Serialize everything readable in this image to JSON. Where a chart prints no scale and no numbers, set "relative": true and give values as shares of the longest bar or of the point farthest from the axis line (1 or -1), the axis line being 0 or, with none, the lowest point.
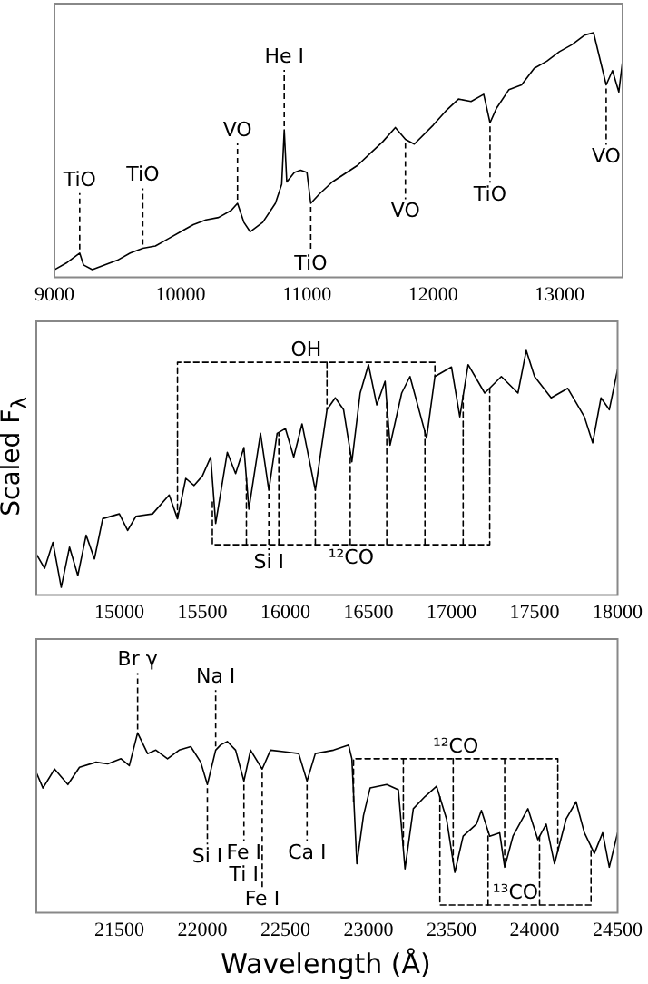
{
  "chart_data": [
    {
      "type": "line",
      "relative": true,
      "xlim": [
        9000,
        13500
      ],
      "xticks": [
        9000,
        10000,
        11000,
        12000,
        13000
      ],
      "series": [
        {
          "color": "#000000",
          "x": [
            9000,
            9100,
            9200,
            9230,
            9300,
            9400,
            9500,
            9600,
            9700,
            9800,
            9900,
            10000,
            10100,
            10200,
            10300,
            10400,
            10450,
            10500,
            10550,
            10650,
            10750,
            10800,
            10820,
            10840,
            10900,
            10950,
            11000,
            11030,
            11100,
            11200,
            11400,
            11500,
            11600,
            11700,
            11780,
            11850,
            12000,
            12100,
            12200,
            12300,
            12400,
            12450,
            12500,
            12600,
            12700,
            12800,
            12900,
            13000,
            13100,
            13200,
            13270,
            13320,
            13370,
            13420,
            13470,
            13500
          ],
          "values": [
            0.0,
            0.03,
            0.07,
            0.02,
            0.0,
            0.02,
            0.04,
            0.07,
            0.09,
            0.1,
            0.13,
            0.16,
            0.19,
            0.21,
            0.22,
            0.25,
            0.28,
            0.2,
            0.16,
            0.2,
            0.28,
            0.36,
            0.59,
            0.37,
            0.41,
            0.42,
            0.41,
            0.28,
            0.32,
            0.37,
            0.44,
            0.49,
            0.54,
            0.6,
            0.55,
            0.53,
            0.61,
            0.67,
            0.72,
            0.71,
            0.74,
            0.62,
            0.68,
            0.76,
            0.78,
            0.85,
            0.88,
            0.92,
            0.95,
            0.99,
            1.0,
            0.89,
            0.78,
            0.84,
            0.75,
            0.88
          ]
        }
      ],
      "annotations": [
        {
          "text": "TiO",
          "x": 9200,
          "y": 0.07
        },
        {
          "text": "TiO",
          "x": 9700,
          "y": 0.09
        },
        {
          "text": "VO",
          "x": 10450,
          "y": 0.28
        },
        {
          "text": "He I",
          "x": 10820,
          "y": 0.59
        },
        {
          "text": "TiO",
          "x": 11030,
          "y": 0.28
        },
        {
          "text": "VO",
          "x": 11780,
          "y": 0.55
        },
        {
          "text": "TiO",
          "x": 12450,
          "y": 0.62
        },
        {
          "text": "VO",
          "x": 13370,
          "y": 0.78
        }
      ]
    },
    {
      "type": "line",
      "relative": true,
      "xlim": [
        14500,
        18000
      ],
      "xticks": [
        15000,
        15500,
        16000,
        16500,
        17000,
        17500,
        18000
      ],
      "ylabel": "Scaled F$_{λ}$",
      "series": [
        {
          "color": "#000000",
          "x": [
            14500,
            14550,
            14600,
            14650,
            14700,
            14750,
            14800,
            14850,
            14900,
            15000,
            15050,
            15100,
            15200,
            15300,
            15350,
            15400,
            15450,
            15500,
            15550,
            15580,
            15650,
            15700,
            15750,
            15780,
            15850,
            15900,
            15950,
            16000,
            16050,
            16100,
            16180,
            16250,
            16300,
            16350,
            16400,
            16450,
            16500,
            16550,
            16600,
            16630,
            16700,
            16750,
            16850,
            16900,
            17000,
            17050,
            17100,
            17200,
            17300,
            17400,
            17450,
            17500,
            17600,
            17700,
            17800,
            17850,
            17900,
            17950,
            18000
          ],
          "values": [
            0.14,
            0.08,
            0.19,
            0.0,
            0.17,
            0.05,
            0.22,
            0.12,
            0.29,
            0.31,
            0.24,
            0.3,
            0.31,
            0.39,
            0.29,
            0.46,
            0.43,
            0.47,
            0.55,
            0.27,
            0.57,
            0.48,
            0.59,
            0.33,
            0.65,
            0.41,
            0.65,
            0.67,
            0.55,
            0.69,
            0.41,
            0.75,
            0.8,
            0.75,
            0.53,
            0.82,
            0.94,
            0.77,
            0.87,
            0.6,
            0.82,
            0.89,
            0.63,
            0.89,
            0.93,
            0.72,
            0.94,
            0.82,
            0.89,
            0.82,
            1.0,
            0.89,
            0.8,
            0.84,
            0.72,
            0.61,
            0.8,
            0.75,
            0.92
          ]
        },
        {
          "name": "OH",
          "color": "#000000",
          "line_style": "dashed",
          "x": [
            15350,
            15350,
            16900,
            16900
          ],
          "values": [
            0.29,
            0.95,
            0.95,
            0.89
          ]
        },
        {
          "color": "#000000",
          "line_style": "dashed",
          "x": [
            16250,
            16250
          ],
          "values": [
            0.95,
            0.75
          ]
        },
        {
          "name": "¹²CO",
          "color": "#000000",
          "line_style": "dashed",
          "x": [
            15560,
            15560,
            17230,
            17230
          ],
          "values": [
            0.36,
            0.18,
            0.18,
            0.84
          ]
        },
        {
          "color": "#000000",
          "line_style": "dashed",
          "x": [
            15765,
            15765
          ],
          "values": [
            0.18,
            0.46
          ]
        },
        {
          "color": "#000000",
          "line_style": "dashed",
          "x": [
            15960,
            15960
          ],
          "values": [
            0.18,
            0.65
          ]
        },
        {
          "color": "#000000",
          "line_style": "dashed",
          "x": [
            16180,
            16180
          ],
          "values": [
            0.18,
            0.41
          ]
        },
        {
          "color": "#000000",
          "line_style": "dashed",
          "x": [
            16390,
            16390
          ],
          "values": [
            0.18,
            0.57
          ]
        },
        {
          "color": "#000000",
          "line_style": "dashed",
          "x": [
            16610,
            16610
          ],
          "values": [
            0.18,
            0.78
          ]
        },
        {
          "color": "#000000",
          "line_style": "dashed",
          "x": [
            16840,
            16840
          ],
          "values": [
            0.18,
            0.66
          ]
        },
        {
          "color": "#000000",
          "line_style": "dashed",
          "x": [
            17070,
            17070
          ],
          "values": [
            0.18,
            0.81
          ]
        }
      ],
      "annotations": [
        {
          "text": "Si I",
          "x": 15900,
          "y": 0.41
        }
      ]
    },
    {
      "type": "line",
      "relative": true,
      "xlim": [
        21000,
        24500
      ],
      "xticks": [
        21500,
        22000,
        22500,
        23000,
        23500,
        24000,
        24500
      ],
      "xlabel": "Wavelength (Å)",
      "series": [
        {
          "color": "#000000",
          "x": [
            21000,
            21040,
            21110,
            21190,
            21260,
            21360,
            21430,
            21510,
            21560,
            21610,
            21670,
            21720,
            21790,
            21860,
            21930,
            21990,
            22030,
            22080,
            22110,
            22150,
            22200,
            22250,
            22290,
            22360,
            22410,
            22500,
            22580,
            22630,
            22680,
            22790,
            22880,
            22900,
            22930,
            22970,
            23010,
            23110,
            23180,
            23220,
            23270,
            23340,
            23410,
            23470,
            23520,
            23570,
            23650,
            23680,
            23730,
            23790,
            23820,
            23870,
            23960,
            24020,
            24070,
            24120,
            24190,
            24250,
            24300,
            24360,
            24410,
            24450,
            24500
          ],
          "values": [
            0.77,
            0.68,
            0.79,
            0.7,
            0.8,
            0.83,
            0.82,
            0.85,
            0.81,
            1.0,
            0.88,
            0.9,
            0.85,
            0.9,
            0.92,
            0.83,
            0.7,
            0.9,
            0.93,
            0.95,
            0.9,
            0.72,
            0.9,
            0.79,
            0.9,
            0.89,
            0.88,
            0.72,
            0.88,
            0.9,
            0.93,
            0.85,
            0.24,
            0.52,
            0.68,
            0.7,
            0.67,
            0.21,
            0.56,
            0.63,
            0.69,
            0.5,
            0.19,
            0.4,
            0.47,
            0.55,
            0.4,
            0.42,
            0.22,
            0.4,
            0.56,
            0.38,
            0.47,
            0.24,
            0.5,
            0.6,
            0.42,
            0.3,
            0.42,
            0.22,
            0.42
          ]
        },
        {
          "name": "¹²CO",
          "color": "#000000",
          "line_style": "dashed",
          "x": [
            22910,
            22910,
            24140,
            24140
          ],
          "values": [
            0.6,
            0.85,
            0.85,
            0.31
          ]
        },
        {
          "color": "#000000",
          "line_style": "dashed",
          "x": [
            23210,
            23210
          ],
          "values": [
            0.85,
            0.33
          ]
        },
        {
          "color": "#000000",
          "line_style": "dashed",
          "x": [
            23510,
            23510
          ],
          "values": [
            0.85,
            0.25
          ]
        },
        {
          "color": "#000000",
          "line_style": "dashed",
          "x": [
            23820,
            23820
          ],
          "values": [
            0.85,
            0.22
          ]
        },
        {
          "name": "¹³CO",
          "color": "#000000",
          "line_style": "dashed",
          "x": [
            23430,
            23430,
            24340,
            24340
          ],
          "values": [
            0.63,
            0.0,
            0.0,
            0.34
          ]
        },
        {
          "color": "#000000",
          "line_style": "dashed",
          "x": [
            23720,
            23720
          ],
          "values": [
            0.0,
            0.43
          ]
        },
        {
          "color": "#000000",
          "line_style": "dashed",
          "x": [
            24030,
            24030
          ],
          "values": [
            0.0,
            0.4
          ]
        }
      ],
      "annotations": [
        {
          "text": "Br γ",
          "x": 21610,
          "y": 1.0
        },
        {
          "text": "Si I",
          "x": 22030,
          "y": 0.7
        },
        {
          "text": "Na I",
          "x": 22080,
          "y": 0.9
        },
        {
          "text": "Fe I",
          "x": 22250,
          "y": 0.72
        },
        {
          "text": "Ti I",
          "x": 22250,
          "y": 0.72
        },
        {
          "text": "Fe I",
          "x": 22360,
          "y": 0.79
        },
        {
          "text": "Ca I",
          "x": 22630,
          "y": 0.72
        }
      ]
    }
  ]
}
